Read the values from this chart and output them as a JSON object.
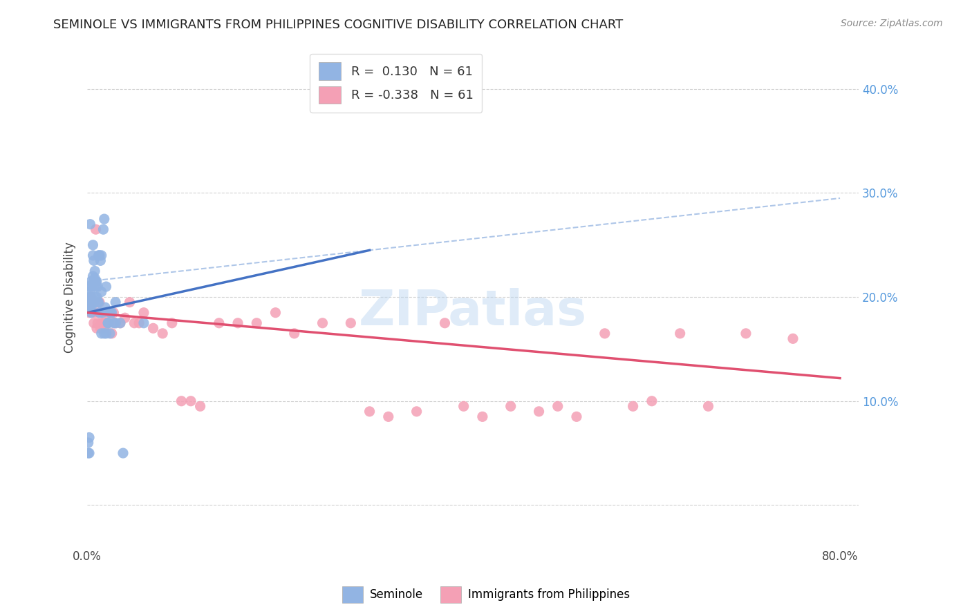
{
  "title": "SEMINOLE VS IMMIGRANTS FROM PHILIPPINES COGNITIVE DISABILITY CORRELATION CHART",
  "source": "Source: ZipAtlas.com",
  "ylabel": "Cognitive Disability",
  "yticks": [
    0.0,
    0.1,
    0.2,
    0.3,
    0.4
  ],
  "ytick_labels": [
    "",
    "10.0%",
    "20.0%",
    "30.0%",
    "40.0%"
  ],
  "xlim": [
    0.0,
    0.82
  ],
  "ylim": [
    -0.04,
    0.44
  ],
  "legend_r1": "R =  0.130   N = 61",
  "legend_r2": "R = -0.338   N = 61",
  "seminole_color": "#92b4e3",
  "philippines_color": "#f4a0b5",
  "trendline_blue": "#4472c4",
  "trendline_pink": "#e05070",
  "trendline_dashed_color": "#aec6e8",
  "background_color": "#ffffff",
  "seminole_x": [
    0.001,
    0.001,
    0.002,
    0.002,
    0.003,
    0.003,
    0.003,
    0.004,
    0.004,
    0.004,
    0.005,
    0.005,
    0.005,
    0.005,
    0.006,
    0.006,
    0.006,
    0.007,
    0.007,
    0.007,
    0.008,
    0.008,
    0.008,
    0.009,
    0.009,
    0.01,
    0.01,
    0.011,
    0.011,
    0.012,
    0.012,
    0.013,
    0.013,
    0.014,
    0.015,
    0.015,
    0.016,
    0.017,
    0.018,
    0.019,
    0.02,
    0.022,
    0.024,
    0.026,
    0.028,
    0.03,
    0.035,
    0.001,
    0.001,
    0.002,
    0.002,
    0.003,
    0.015,
    0.018,
    0.02,
    0.022,
    0.024,
    0.025,
    0.03,
    0.06,
    0.038
  ],
  "seminole_y": [
    0.19,
    0.195,
    0.2,
    0.21,
    0.188,
    0.192,
    0.205,
    0.185,
    0.2,
    0.215,
    0.192,
    0.198,
    0.21,
    0.195,
    0.25,
    0.24,
    0.22,
    0.215,
    0.235,
    0.195,
    0.218,
    0.225,
    0.2,
    0.21,
    0.215,
    0.2,
    0.215,
    0.21,
    0.195,
    0.24,
    0.195,
    0.24,
    0.185,
    0.235,
    0.205,
    0.24,
    0.185,
    0.265,
    0.275,
    0.19,
    0.21,
    0.175,
    0.165,
    0.185,
    0.175,
    0.195,
    0.175,
    0.05,
    0.06,
    0.05,
    0.065,
    0.27,
    0.165,
    0.165,
    0.165,
    0.175,
    0.185,
    0.185,
    0.175,
    0.175,
    0.05
  ],
  "philippines_x": [
    0.001,
    0.002,
    0.003,
    0.004,
    0.005,
    0.006,
    0.007,
    0.008,
    0.009,
    0.01,
    0.011,
    0.012,
    0.013,
    0.014,
    0.015,
    0.016,
    0.017,
    0.018,
    0.019,
    0.02,
    0.022,
    0.024,
    0.026,
    0.028,
    0.03,
    0.035,
    0.04,
    0.045,
    0.05,
    0.055,
    0.06,
    0.07,
    0.08,
    0.09,
    0.1,
    0.11,
    0.12,
    0.14,
    0.16,
    0.18,
    0.2,
    0.22,
    0.25,
    0.28,
    0.3,
    0.32,
    0.35,
    0.38,
    0.4,
    0.42,
    0.45,
    0.48,
    0.5,
    0.52,
    0.55,
    0.58,
    0.6,
    0.63,
    0.66,
    0.7,
    0.75
  ],
  "philippines_y": [
    0.19,
    0.185,
    0.195,
    0.2,
    0.185,
    0.195,
    0.175,
    0.185,
    0.265,
    0.17,
    0.175,
    0.185,
    0.195,
    0.17,
    0.175,
    0.175,
    0.185,
    0.17,
    0.175,
    0.175,
    0.175,
    0.18,
    0.165,
    0.185,
    0.175,
    0.175,
    0.18,
    0.195,
    0.175,
    0.175,
    0.185,
    0.17,
    0.165,
    0.175,
    0.1,
    0.1,
    0.095,
    0.175,
    0.175,
    0.175,
    0.185,
    0.165,
    0.175,
    0.175,
    0.09,
    0.085,
    0.09,
    0.175,
    0.095,
    0.085,
    0.095,
    0.09,
    0.095,
    0.085,
    0.165,
    0.095,
    0.1,
    0.165,
    0.095,
    0.165,
    0.16
  ],
  "trendline_seminole_x0": 0.0,
  "trendline_seminole_y0": 0.185,
  "trendline_seminole_x1": 0.3,
  "trendline_seminole_y1": 0.245,
  "trendline_phil_x0": 0.0,
  "trendline_phil_y0": 0.185,
  "trendline_phil_x1": 0.8,
  "trendline_phil_y1": 0.122,
  "trendline_dash_x0": 0.0,
  "trendline_dash_y0": 0.215,
  "trendline_dash_x1": 0.8,
  "trendline_dash_y1": 0.295
}
